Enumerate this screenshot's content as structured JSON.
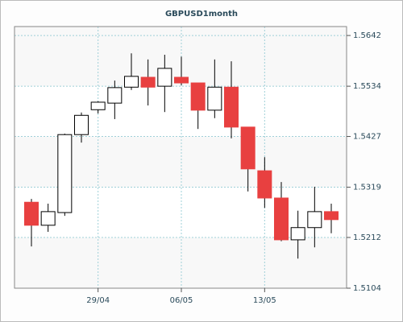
{
  "chart_data": {
    "type": "candlestick",
    "title": "GBPUSD1month",
    "categories": [
      null,
      null,
      null,
      null,
      "29/04",
      null,
      null,
      null,
      null,
      "06/05",
      null,
      null,
      null,
      null,
      "13/05",
      null,
      null,
      null,
      null
    ],
    "open": [
      1.5287,
      1.5238,
      1.5265,
      1.5431,
      1.5484,
      1.5498,
      1.5532,
      1.5553,
      1.5534,
      1.5553,
      1.5541,
      1.5483,
      1.5532,
      1.5447,
      1.5354,
      1.5296,
      1.5207,
      1.5233,
      1.5267
    ],
    "high": [
      1.5294,
      1.5284,
      1.5433,
      1.5478,
      1.5502,
      1.5546,
      1.5604,
      1.5591,
      1.5601,
      1.5597,
      1.5541,
      1.5591,
      1.5587,
      1.5447,
      1.5383,
      1.533,
      1.5269,
      1.532,
      1.5284
    ],
    "low": [
      1.5193,
      1.5224,
      1.5258,
      1.5414,
      1.5476,
      1.5464,
      1.5526,
      1.5493,
      1.5479,
      1.5536,
      1.5443,
      1.5466,
      1.5423,
      1.531,
      1.5275,
      1.5204,
      1.5167,
      1.5191,
      1.5221
    ],
    "close": [
      1.5238,
      1.5267,
      1.5431,
      1.5472,
      1.55,
      1.5531,
      1.5555,
      1.5532,
      1.5572,
      1.5541,
      1.5483,
      1.5532,
      1.5447,
      1.5358,
      1.5296,
      1.5207,
      1.5233,
      1.5267,
      1.525
    ],
    "up_color": "#ffffff",
    "down_color": "#e84040",
    "ylim": [
      1.5104,
      1.5661
    ],
    "yticks": [
      1.5104,
      1.5212,
      1.5319,
      1.5427,
      1.5534,
      1.5642
    ],
    "grid": true
  }
}
